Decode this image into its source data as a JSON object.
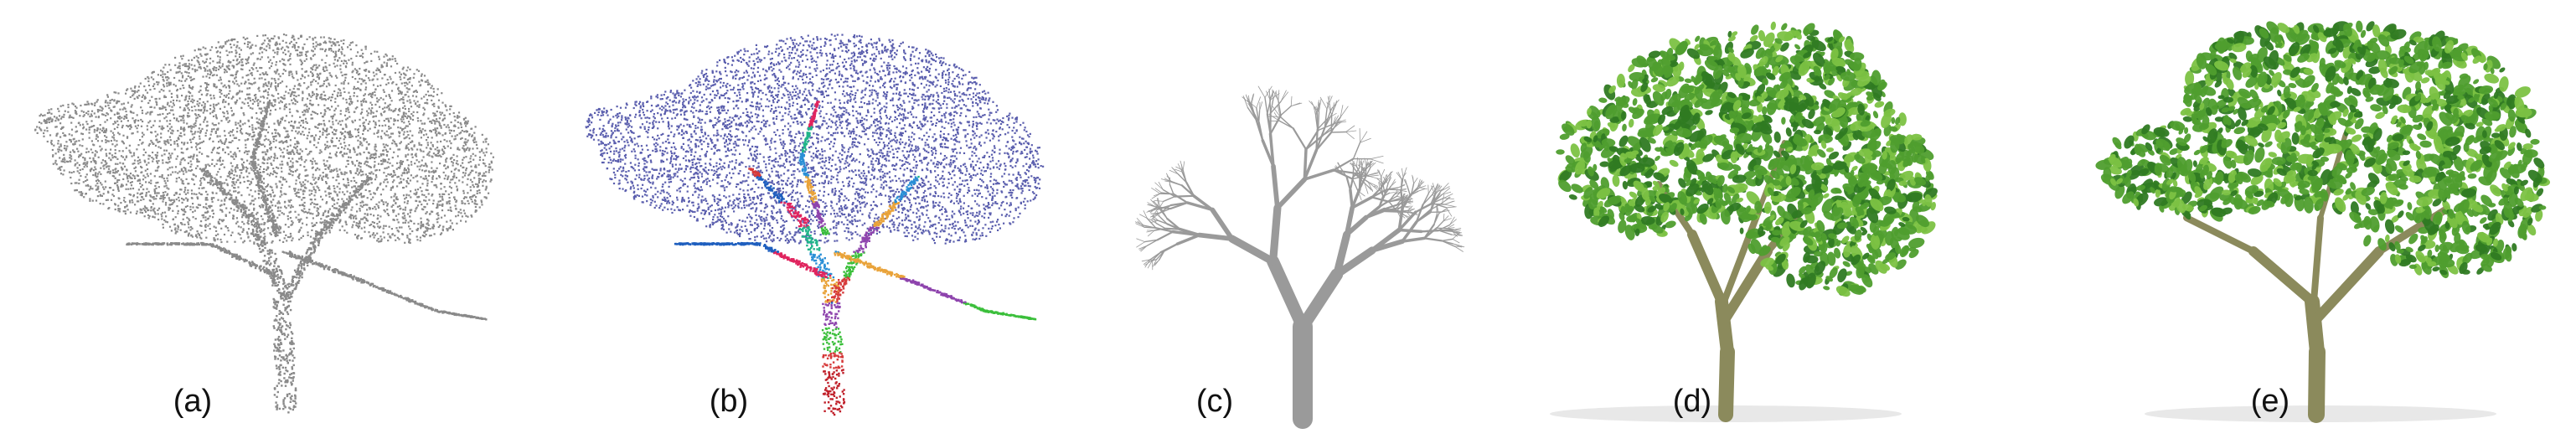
{
  "figure": {
    "panels": [
      {
        "id": "a",
        "caption": "(a)",
        "depicts": "grey point cloud of a tree"
      },
      {
        "id": "b",
        "caption": "(b)",
        "depicts": "segmented point cloud with colored branch points and purple canopy points"
      },
      {
        "id": "c",
        "caption": "(c)",
        "depicts": "grey reconstructed branch skeleton"
      },
      {
        "id": "d",
        "caption": "(d)",
        "depicts": "rendered tree model with green foliage"
      },
      {
        "id": "e",
        "caption": "(e)",
        "depicts": "rendered tree model with green foliage"
      }
    ]
  },
  "colors": {
    "point_grey": "#8a8a8a",
    "canopy_purple": "#5b5fae",
    "segment_colors": [
      "#e0245e",
      "#21b58a",
      "#2a8fd6",
      "#e9a33a",
      "#8e44ad",
      "#3bbf3b",
      "#d63a3a",
      "#1f5fbf"
    ],
    "trunk_red": "#c0202a",
    "branch_grey": "#9a9a9a",
    "bark": "#8b8a5c",
    "leaf_dark": "#2f7a22",
    "leaf_mid": "#4f9e2e",
    "leaf_light": "#7cc243"
  }
}
